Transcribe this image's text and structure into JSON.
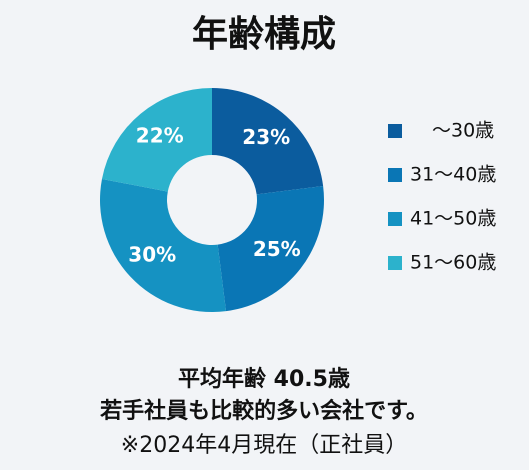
{
  "chart_data": {
    "type": "donut",
    "title": "年齢構成",
    "categories": [
      "〜30歳",
      "31〜40歳",
      "41〜50歳",
      "51〜60歳"
    ],
    "values": [
      23,
      25,
      30,
      22
    ],
    "value_labels": [
      "23%",
      "25%",
      "30%",
      "22%"
    ],
    "colors": [
      "#0b5c9e",
      "#0a76b5",
      "#1592c2",
      "#2cb2cc"
    ],
    "legend": "right",
    "annotations": [
      "平均年齢 40.5歳",
      "若手社員も比較的多い会社です。",
      "※2024年4月現在（正社員）"
    ]
  }
}
